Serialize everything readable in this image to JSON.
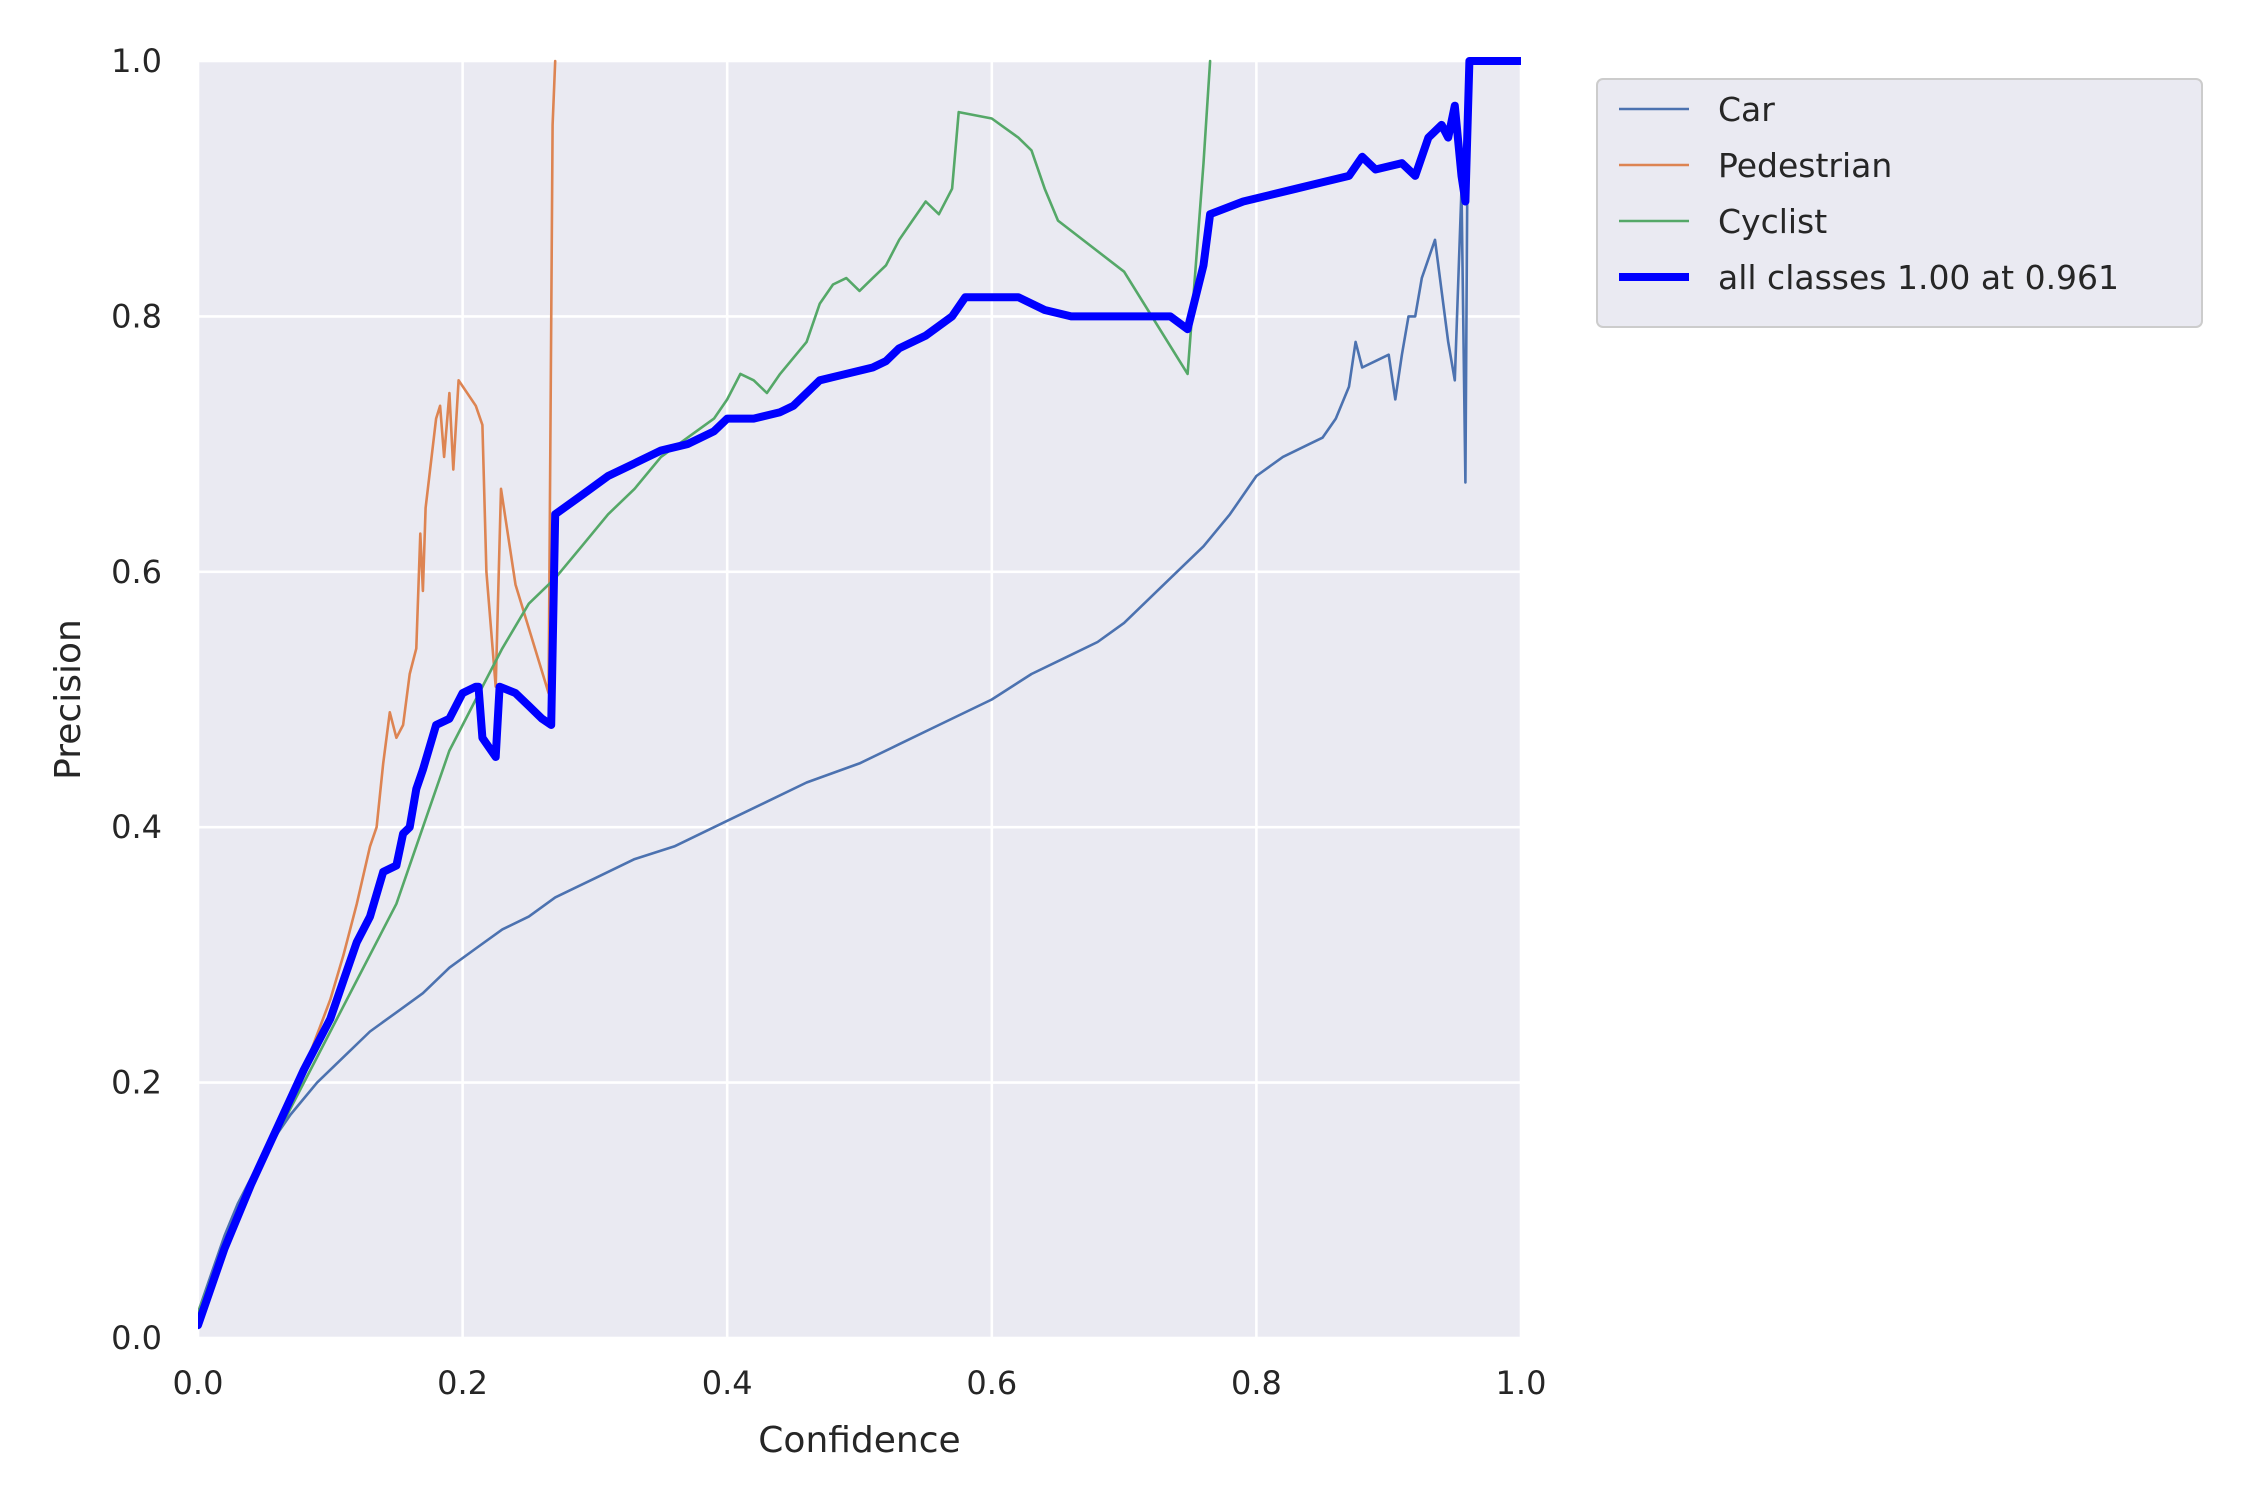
{
  "colors": {
    "plot_bg": "#EAEAF2",
    "grid": "#FFFFFF",
    "text": "#262626",
    "legend_bg": "#EAEAF2",
    "legend_border": "#CCCCCC"
  },
  "chart_data": {
    "type": "line",
    "title": "",
    "xlabel": "Confidence",
    "ylabel": "Precision",
    "xlim": [
      0,
      1
    ],
    "ylim": [
      0,
      1
    ],
    "xticks": [
      "0.0",
      "0.2",
      "0.4",
      "0.6",
      "0.8",
      "1.0"
    ],
    "yticks": [
      "0.0",
      "0.2",
      "0.4",
      "0.6",
      "0.8",
      "1.0"
    ],
    "grid": true,
    "legend_position": "outside-top-right",
    "series": [
      {
        "name": "Car",
        "color": "#4C72B0",
        "width": "thin",
        "points": [
          [
            0.0,
            0.02
          ],
          [
            0.01,
            0.05
          ],
          [
            0.02,
            0.08
          ],
          [
            0.03,
            0.105
          ],
          [
            0.05,
            0.145
          ],
          [
            0.07,
            0.175
          ],
          [
            0.09,
            0.2
          ],
          [
            0.11,
            0.22
          ],
          [
            0.13,
            0.24
          ],
          [
            0.15,
            0.255
          ],
          [
            0.17,
            0.27
          ],
          [
            0.19,
            0.29
          ],
          [
            0.21,
            0.305
          ],
          [
            0.23,
            0.32
          ],
          [
            0.25,
            0.33
          ],
          [
            0.27,
            0.345
          ],
          [
            0.3,
            0.36
          ],
          [
            0.33,
            0.375
          ],
          [
            0.36,
            0.385
          ],
          [
            0.4,
            0.405
          ],
          [
            0.43,
            0.42
          ],
          [
            0.46,
            0.435
          ],
          [
            0.5,
            0.45
          ],
          [
            0.53,
            0.465
          ],
          [
            0.56,
            0.48
          ],
          [
            0.6,
            0.5
          ],
          [
            0.63,
            0.52
          ],
          [
            0.66,
            0.535
          ],
          [
            0.68,
            0.545
          ],
          [
            0.7,
            0.56
          ],
          [
            0.72,
            0.58
          ],
          [
            0.74,
            0.6
          ],
          [
            0.76,
            0.62
          ],
          [
            0.78,
            0.645
          ],
          [
            0.8,
            0.675
          ],
          [
            0.82,
            0.69
          ],
          [
            0.84,
            0.7
          ],
          [
            0.85,
            0.705
          ],
          [
            0.86,
            0.72
          ],
          [
            0.87,
            0.745
          ],
          [
            0.875,
            0.78
          ],
          [
            0.88,
            0.76
          ],
          [
            0.89,
            0.765
          ],
          [
            0.9,
            0.77
          ],
          [
            0.905,
            0.735
          ],
          [
            0.91,
            0.77
          ],
          [
            0.915,
            0.8
          ],
          [
            0.92,
            0.8
          ],
          [
            0.925,
            0.83
          ],
          [
            0.93,
            0.845
          ],
          [
            0.935,
            0.86
          ],
          [
            0.94,
            0.82
          ],
          [
            0.945,
            0.78
          ],
          [
            0.95,
            0.75
          ],
          [
            0.955,
            0.9
          ],
          [
            0.958,
            0.67
          ],
          [
            0.96,
            1.0
          ],
          [
            1.0,
            1.0
          ]
        ]
      },
      {
        "name": "Pedestrian",
        "color": "#DD8452",
        "width": "thin",
        "points": [
          [
            0.0,
            0.02
          ],
          [
            0.02,
            0.07
          ],
          [
            0.04,
            0.12
          ],
          [
            0.06,
            0.16
          ],
          [
            0.08,
            0.21
          ],
          [
            0.1,
            0.265
          ],
          [
            0.11,
            0.3
          ],
          [
            0.12,
            0.34
          ],
          [
            0.13,
            0.385
          ],
          [
            0.135,
            0.4
          ],
          [
            0.14,
            0.45
          ],
          [
            0.145,
            0.49
          ],
          [
            0.15,
            0.47
          ],
          [
            0.155,
            0.48
          ],
          [
            0.16,
            0.52
          ],
          [
            0.165,
            0.54
          ],
          [
            0.168,
            0.63
          ],
          [
            0.17,
            0.585
          ],
          [
            0.172,
            0.65
          ],
          [
            0.18,
            0.72
          ],
          [
            0.183,
            0.73
          ],
          [
            0.186,
            0.69
          ],
          [
            0.19,
            0.74
          ],
          [
            0.193,
            0.68
          ],
          [
            0.197,
            0.75
          ],
          [
            0.21,
            0.73
          ],
          [
            0.215,
            0.715
          ],
          [
            0.218,
            0.6
          ],
          [
            0.225,
            0.51
          ],
          [
            0.229,
            0.665
          ],
          [
            0.24,
            0.59
          ],
          [
            0.265,
            0.505
          ],
          [
            0.268,
            0.95
          ],
          [
            0.27,
            1.0
          ]
        ]
      },
      {
        "name": "Cyclist",
        "color": "#55A868",
        "width": "thin",
        "points": [
          [
            0.0,
            0.02
          ],
          [
            0.03,
            0.1
          ],
          [
            0.06,
            0.16
          ],
          [
            0.09,
            0.22
          ],
          [
            0.12,
            0.28
          ],
          [
            0.15,
            0.34
          ],
          [
            0.17,
            0.4
          ],
          [
            0.19,
            0.46
          ],
          [
            0.21,
            0.5
          ],
          [
            0.23,
            0.54
          ],
          [
            0.25,
            0.575
          ],
          [
            0.27,
            0.595
          ],
          [
            0.29,
            0.62
          ],
          [
            0.31,
            0.645
          ],
          [
            0.33,
            0.665
          ],
          [
            0.35,
            0.69
          ],
          [
            0.37,
            0.705
          ],
          [
            0.39,
            0.72
          ],
          [
            0.4,
            0.735
          ],
          [
            0.41,
            0.755
          ],
          [
            0.42,
            0.75
          ],
          [
            0.43,
            0.74
          ],
          [
            0.44,
            0.755
          ],
          [
            0.46,
            0.78
          ],
          [
            0.47,
            0.81
          ],
          [
            0.48,
            0.825
          ],
          [
            0.49,
            0.83
          ],
          [
            0.5,
            0.82
          ],
          [
            0.51,
            0.83
          ],
          [
            0.52,
            0.84
          ],
          [
            0.53,
            0.86
          ],
          [
            0.54,
            0.875
          ],
          [
            0.55,
            0.89
          ],
          [
            0.56,
            0.88
          ],
          [
            0.57,
            0.9
          ],
          [
            0.575,
            0.96
          ],
          [
            0.6,
            0.955
          ],
          [
            0.62,
            0.94
          ],
          [
            0.63,
            0.93
          ],
          [
            0.64,
            0.9
          ],
          [
            0.65,
            0.875
          ],
          [
            0.7,
            0.835
          ],
          [
            0.748,
            0.755
          ],
          [
            0.76,
            0.92
          ],
          [
            0.765,
            1.0
          ]
        ]
      },
      {
        "name": "all classes 1.00 at 0.961",
        "color": "#0000FF",
        "width": "thick",
        "points": [
          [
            0.0,
            0.01
          ],
          [
            0.02,
            0.07
          ],
          [
            0.04,
            0.12
          ],
          [
            0.06,
            0.165
          ],
          [
            0.08,
            0.21
          ],
          [
            0.1,
            0.25
          ],
          [
            0.11,
            0.28
          ],
          [
            0.12,
            0.31
          ],
          [
            0.13,
            0.33
          ],
          [
            0.14,
            0.365
          ],
          [
            0.15,
            0.37
          ],
          [
            0.155,
            0.395
          ],
          [
            0.16,
            0.4
          ],
          [
            0.165,
            0.43
          ],
          [
            0.17,
            0.445
          ],
          [
            0.18,
            0.48
          ],
          [
            0.19,
            0.485
          ],
          [
            0.2,
            0.505
          ],
          [
            0.21,
            0.51
          ],
          [
            0.212,
            0.51
          ],
          [
            0.215,
            0.47
          ],
          [
            0.225,
            0.455
          ],
          [
            0.228,
            0.51
          ],
          [
            0.24,
            0.505
          ],
          [
            0.25,
            0.495
          ],
          [
            0.26,
            0.485
          ],
          [
            0.267,
            0.48
          ],
          [
            0.27,
            0.645
          ],
          [
            0.29,
            0.66
          ],
          [
            0.31,
            0.675
          ],
          [
            0.33,
            0.685
          ],
          [
            0.35,
            0.695
          ],
          [
            0.37,
            0.7
          ],
          [
            0.39,
            0.71
          ],
          [
            0.4,
            0.72
          ],
          [
            0.42,
            0.72
          ],
          [
            0.44,
            0.725
          ],
          [
            0.45,
            0.73
          ],
          [
            0.47,
            0.75
          ],
          [
            0.49,
            0.755
          ],
          [
            0.51,
            0.76
          ],
          [
            0.52,
            0.765
          ],
          [
            0.53,
            0.775
          ],
          [
            0.55,
            0.785
          ],
          [
            0.57,
            0.8
          ],
          [
            0.58,
            0.815
          ],
          [
            0.6,
            0.815
          ],
          [
            0.62,
            0.815
          ],
          [
            0.64,
            0.805
          ],
          [
            0.66,
            0.8
          ],
          [
            0.68,
            0.8
          ],
          [
            0.7,
            0.8
          ],
          [
            0.72,
            0.8
          ],
          [
            0.735,
            0.8
          ],
          [
            0.748,
            0.79
          ],
          [
            0.76,
            0.84
          ],
          [
            0.765,
            0.88
          ],
          [
            0.79,
            0.89
          ],
          [
            0.81,
            0.895
          ],
          [
            0.83,
            0.9
          ],
          [
            0.85,
            0.905
          ],
          [
            0.87,
            0.91
          ],
          [
            0.88,
            0.925
          ],
          [
            0.89,
            0.915
          ],
          [
            0.91,
            0.92
          ],
          [
            0.92,
            0.91
          ],
          [
            0.93,
            0.94
          ],
          [
            0.94,
            0.95
          ],
          [
            0.945,
            0.94
          ],
          [
            0.95,
            0.965
          ],
          [
            0.955,
            0.91
          ],
          [
            0.958,
            0.89
          ],
          [
            0.961,
            1.0
          ],
          [
            1.0,
            1.0
          ]
        ]
      }
    ]
  }
}
